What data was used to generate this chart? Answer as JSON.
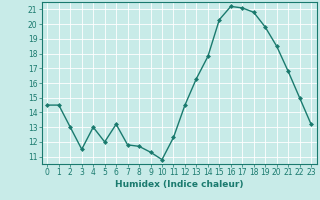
{
  "x": [
    0,
    1,
    2,
    3,
    4,
    5,
    6,
    7,
    8,
    9,
    10,
    11,
    12,
    13,
    14,
    15,
    16,
    17,
    18,
    19,
    20,
    21,
    22,
    23
  ],
  "y": [
    14.5,
    14.5,
    13.0,
    11.5,
    13.0,
    12.0,
    13.2,
    11.8,
    11.7,
    11.3,
    10.8,
    12.3,
    14.5,
    16.3,
    17.8,
    20.3,
    21.2,
    21.1,
    20.8,
    19.8,
    18.5,
    16.8,
    15.0,
    13.2
  ],
  "line_color": "#1a7a6e",
  "marker": "D",
  "marker_size": 2.0,
  "background_color": "#c8ebe8",
  "grid_color": "#ffffff",
  "xlabel": "Humidex (Indice chaleur)",
  "xlim": [
    -0.5,
    23.5
  ],
  "ylim": [
    10.5,
    21.5
  ],
  "yticks": [
    11,
    12,
    13,
    14,
    15,
    16,
    17,
    18,
    19,
    20,
    21
  ],
  "xticks": [
    0,
    1,
    2,
    3,
    4,
    5,
    6,
    7,
    8,
    9,
    10,
    11,
    12,
    13,
    14,
    15,
    16,
    17,
    18,
    19,
    20,
    21,
    22,
    23
  ],
  "tick_color": "#1a7a6e",
  "label_color": "#1a7a6e",
  "label_fontsize": 6.5,
  "tick_fontsize": 5.5,
  "linewidth": 1.0
}
